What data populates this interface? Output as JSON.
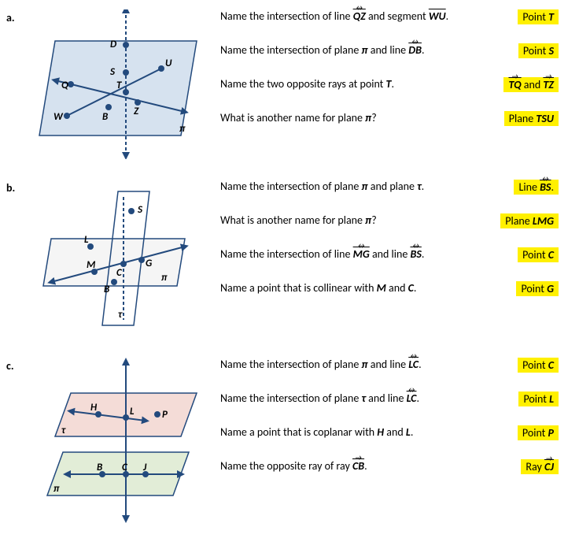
{
  "sections": {
    "a": {
      "label": "a.",
      "diagram": {
        "type": "plane_diagram",
        "plane_fill": "#d6e2ef",
        "plane_stroke": "#234a7d",
        "point_color": "#234a7d",
        "line_color": "#234a7d",
        "points": {
          "D": "D",
          "S": "S",
          "U": "U",
          "Q": "Q",
          "T": "T",
          "W": "W",
          "B": "B",
          "Z": "Z"
        },
        "plane_label": "π"
      },
      "rows": [
        {
          "q_html": "Name the intersection of line <span class='bi over-lr'>QZ</span> and segment <span class='bi over-line'>WU</span>.",
          "a_html": "Point <span class='bi'>T</span>"
        },
        {
          "q_html": "Name the intersection of plane <span class='bi'>π</span> and line <span class='bi over-lr'>DB</span>.",
          "a_html": "Point <span class='bi'>S</span>"
        },
        {
          "q_html": "Name the two opposite rays at point <span class='bi'>T</span>.",
          "a_html": "<span class='bi over-ray'>TQ</span> and <span class='bi over-ray'>TZ</span>"
        },
        {
          "q_html": "What is another name for plane <span class='bi'>π</span>?",
          "a_html": "Plane <span class='bi'>TSU</span>"
        }
      ]
    },
    "b": {
      "label": "b.",
      "diagram": {
        "type": "two_planes",
        "plane_fill": "#f2f2f2",
        "plane_stroke": "#234a7d",
        "point_color": "#234a7d",
        "points": {
          "S": "S",
          "L": "L",
          "M": "M",
          "C": "C",
          "G": "G",
          "B": "B"
        },
        "plane_labels": {
          "pi": "π",
          "tau": "τ"
        }
      },
      "rows": [
        {
          "q_html": "Name the intersection of plane <span class='bi'>π</span> and plane <span class='bi'>τ</span>.",
          "a_html": "Line <span class='bi over-lr'>BS</span>."
        },
        {
          "q_html": "What is another name for plane <span class='bi'>π</span>?",
          "a_html": "Plane <span class='bi'>LMG</span>"
        },
        {
          "q_html": "Name the intersection of line <span class='bi over-lr'>MG</span> and line <span class='bi over-lr'>BS</span>.",
          "a_html": "Point <span class='bi'>C</span>"
        },
        {
          "q_html": "Name a point that is collinear with <span class='bi'>M</span> and <span class='bi'>C</span>.",
          "a_html": "Point <span class='bi'>G</span>"
        }
      ]
    },
    "c": {
      "label": "c.",
      "diagram": {
        "type": "parallel_planes",
        "tau_fill": "#f4dcd7",
        "pi_fill": "#e2edd7",
        "plane_stroke": "#234a7d",
        "point_color": "#234a7d",
        "points": {
          "H": "H",
          "L": "L",
          "P": "P",
          "B": "B",
          "C": "C",
          "J": "J"
        },
        "plane_labels": {
          "pi": "π",
          "tau": "τ"
        }
      },
      "rows": [
        {
          "q_html": "Name the intersection of plane <span class='bi'>π</span> and line <span class='bi over-lr'>LC</span>.",
          "a_html": "Point <span class='bi'>C</span>"
        },
        {
          "q_html": "Name the intersection of plane <span class='bi'>τ</span> and line <span class='bi over-lr'>LC</span>.",
          "a_html": "Point <span class='bi'>L</span>"
        },
        {
          "q_html": "Name a point that is coplanar with <span class='bi'>H</span> and <span class='bi'>L</span>.",
          "a_html": "Point <span class='bi'>P</span>"
        },
        {
          "q_html": "Name the opposite ray of ray <span class='bi over-ray'>CB</span>.",
          "a_html": "Ray <span class='bi over-ray'>CJ</span>"
        }
      ]
    }
  }
}
